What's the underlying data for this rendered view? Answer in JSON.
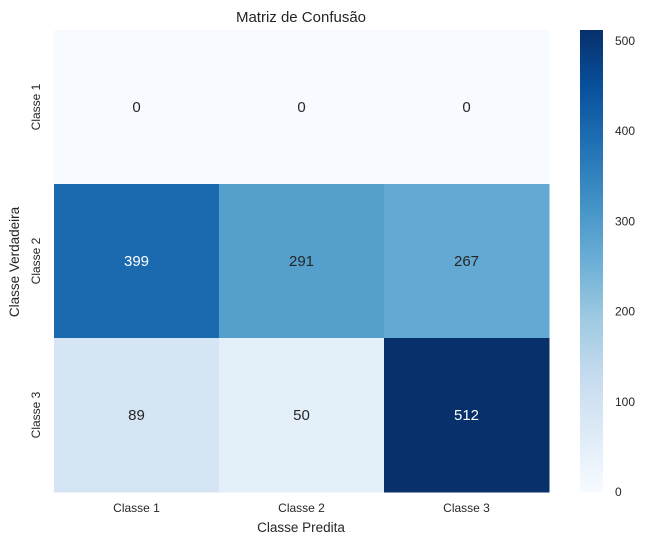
{
  "chart_data": {
    "type": "heatmap",
    "title": "Matriz de Confusão",
    "xlabel": "Classe Predita",
    "ylabel": "Classe Verdadeira",
    "x_categories": [
      "Classe 1",
      "Classe 2",
      "Classe 3"
    ],
    "y_categories": [
      "Classe 1",
      "Classe 2",
      "Classe 3"
    ],
    "values": [
      [
        0,
        0,
        0
      ],
      [
        399,
        291,
        267
      ],
      [
        89,
        50,
        512
      ]
    ],
    "colormap": "Blues",
    "colorbar": {
      "min": 0,
      "max": 512,
      "ticks": [
        0,
        100,
        200,
        300,
        400,
        500
      ]
    },
    "annotations": true,
    "grid": false
  }
}
